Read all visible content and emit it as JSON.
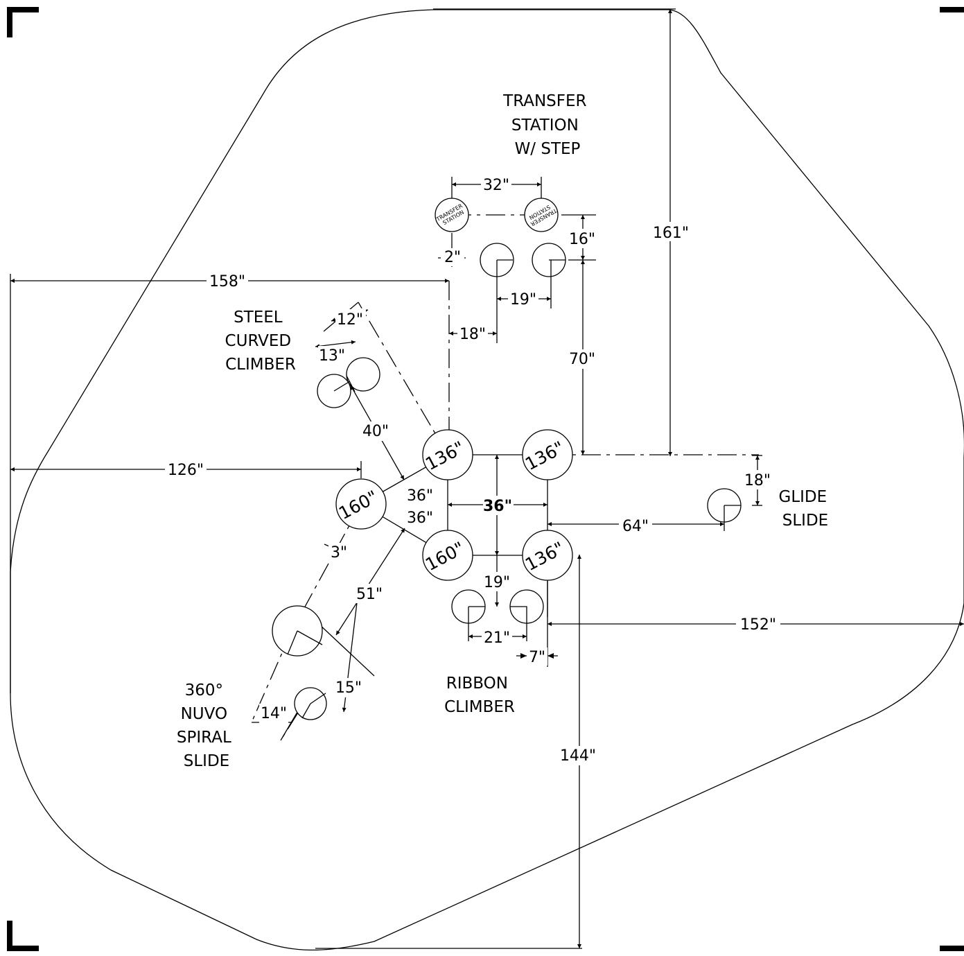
{
  "labels": {
    "transfer": [
      "TRANSFER",
      "STATION",
      "W/ STEP"
    ],
    "steel": [
      "STEEL",
      "CURVED",
      "CLIMBER"
    ],
    "glide": [
      "GLIDE",
      "SLIDE"
    ],
    "ribbon": [
      "RIBBON",
      "CLIMBER"
    ],
    "spiral": [
      "360°",
      "NUVO",
      "SPIRAL",
      "SLIDE"
    ]
  },
  "transfer_footing_text": [
    "TRANSFER",
    "STATION"
  ],
  "posts": {
    "p1": "136\"",
    "p2": "136\"",
    "p3": "160\"",
    "p4": "160\"",
    "p5": "136\""
  },
  "dims": {
    "d32": "32\"",
    "d16": "16\"",
    "d161": "161\"",
    "d2": "2\"",
    "d158": "158\"",
    "d19a": "19\"",
    "d12": "12\"",
    "d18a": "18\"",
    "d13": "13\"",
    "d70": "70\"",
    "d40": "40\"",
    "d126": "126\"",
    "d18b": "18\"",
    "d36a": "36\"",
    "d36b": "36\"",
    "d36c": "36\"",
    "d64": "64\"",
    "d3": "3\"",
    "d51": "51\"",
    "d19b": "19\"",
    "d152": "152\"",
    "d21": "21\"",
    "d7": "7\"",
    "d15": "15\"",
    "d14": "14\"",
    "d144": "144\""
  }
}
